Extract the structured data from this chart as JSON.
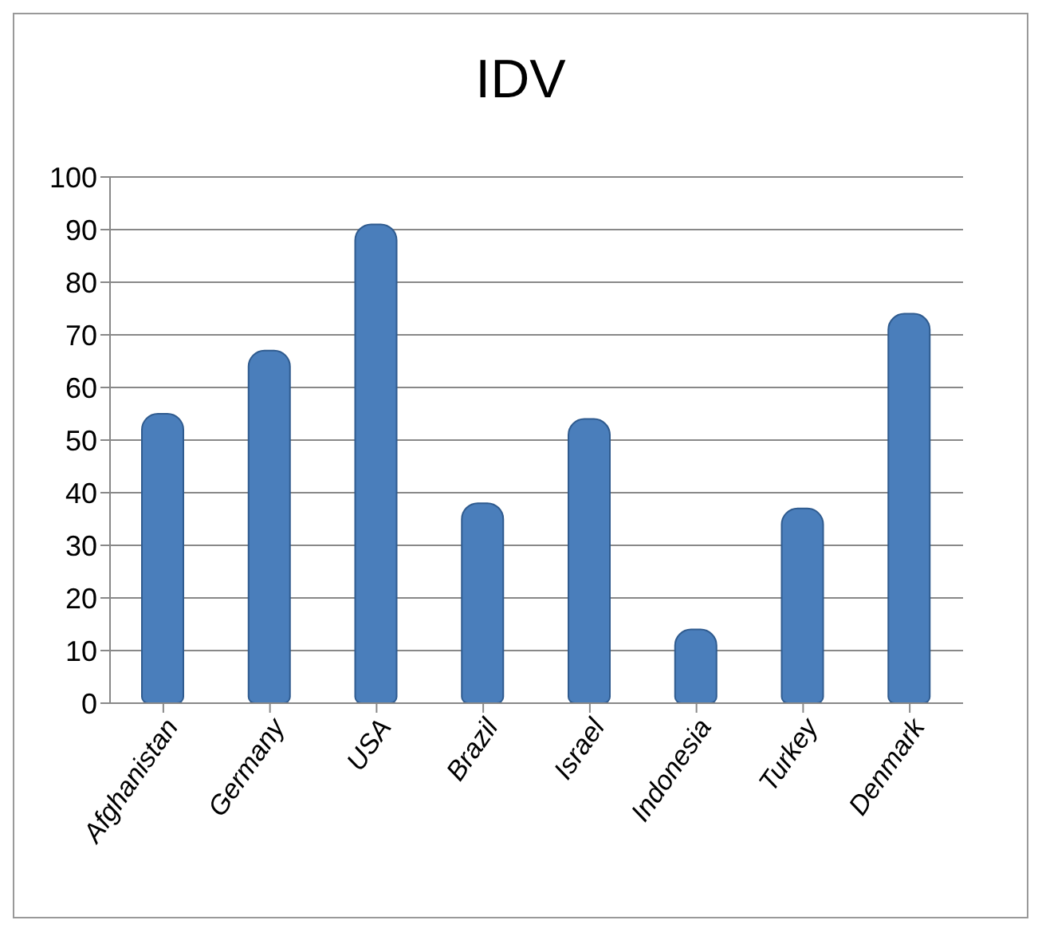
{
  "chart_data": {
    "type": "bar",
    "title": "IDV",
    "categories": [
      "Afghanistan",
      "Germany",
      "USA",
      "Brazil",
      "Israel",
      "Indonesia",
      "Turkey",
      "Denmark"
    ],
    "values": [
      55,
      67,
      91,
      38,
      54,
      14,
      37,
      74
    ],
    "color": "#4a7ebb",
    "ylim": [
      0,
      100
    ],
    "yticks": [
      0,
      10,
      20,
      30,
      40,
      50,
      60,
      70,
      80,
      90,
      100
    ],
    "grid": "y"
  }
}
